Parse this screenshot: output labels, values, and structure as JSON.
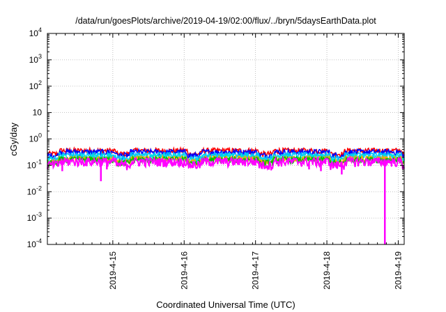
{
  "chart_data": {
    "type": "line",
    "title": "/data/run/goesPlots/archive/2019-04-19/02:00/flux/../bryn/5daysEarthData.plot",
    "xlabel": "Coordinated Universal Time (UTC)",
    "ylabel": "cGy/day",
    "y_scale": "log",
    "ylim": [
      0.0001,
      10000
    ],
    "xlim": [
      "2019-04-14T02:00",
      "2019-04-19T02:00"
    ],
    "grid": true,
    "legend": "none",
    "y_tick_labels": [
      {
        "value": 0.0001,
        "base": "10",
        "exp": "-4"
      },
      {
        "value": 0.001,
        "base": "10",
        "exp": "-3"
      },
      {
        "value": 0.01,
        "base": "10",
        "exp": "-2"
      },
      {
        "value": 0.1,
        "base": "10",
        "exp": "-1"
      },
      {
        "value": 1,
        "base": "10",
        "exp": "0"
      },
      {
        "value": 10,
        "base": "10",
        "exp": ""
      },
      {
        "value": 100,
        "base": "10",
        "exp": "2"
      },
      {
        "value": 1000,
        "base": "10",
        "exp": "3"
      },
      {
        "value": 10000,
        "base": "10",
        "exp": "4"
      }
    ],
    "x_tick_labels": [
      {
        "x": "2019-04-15T00:00",
        "label": "2019-4-15"
      },
      {
        "x": "2019-04-16T00:00",
        "label": "2019-4-16"
      },
      {
        "x": "2019-04-17T00:00",
        "label": "2019-4-17"
      },
      {
        "x": "2019-04-18T00:00",
        "label": "2019-4-18"
      },
      {
        "x": "2019-04-19T00:00",
        "label": "2019-4-19"
      }
    ],
    "series": [
      {
        "color": "#ff0000",
        "level": 0.36,
        "noise": 0.1
      },
      {
        "color": "#0000ff",
        "level": 0.32,
        "noise": 0.09
      },
      {
        "color": "#00bfff",
        "level": 0.25,
        "noise": 0.07
      },
      {
        "color": "#00e0e0",
        "level": 0.21,
        "noise": 0.06
      },
      {
        "color": "#ffa500",
        "level": 0.18,
        "noise": 0.05
      },
      {
        "color": "#00c000",
        "level": 0.165,
        "noise": 0.05
      },
      {
        "color": "#ff00ff",
        "level": 0.14,
        "noise": 0.06
      }
    ],
    "dips": [
      {
        "x": "2019-04-14T07:00",
        "y": 0.06
      },
      {
        "x": "2019-04-14T22:00",
        "y": 0.07
      },
      {
        "x": "2019-04-14T20:00",
        "y": 0.025
      },
      {
        "x": "2019-04-16T03:00",
        "y": 0.08
      },
      {
        "x": "2019-04-17T18:00",
        "y": 0.07
      },
      {
        "x": "2019-04-17T22:00",
        "y": 0.06
      },
      {
        "x": "2019-04-18T05:00",
        "y": 0.045
      },
      {
        "x": "2019-04-18T19:30",
        "y": 0.0001
      }
    ]
  }
}
